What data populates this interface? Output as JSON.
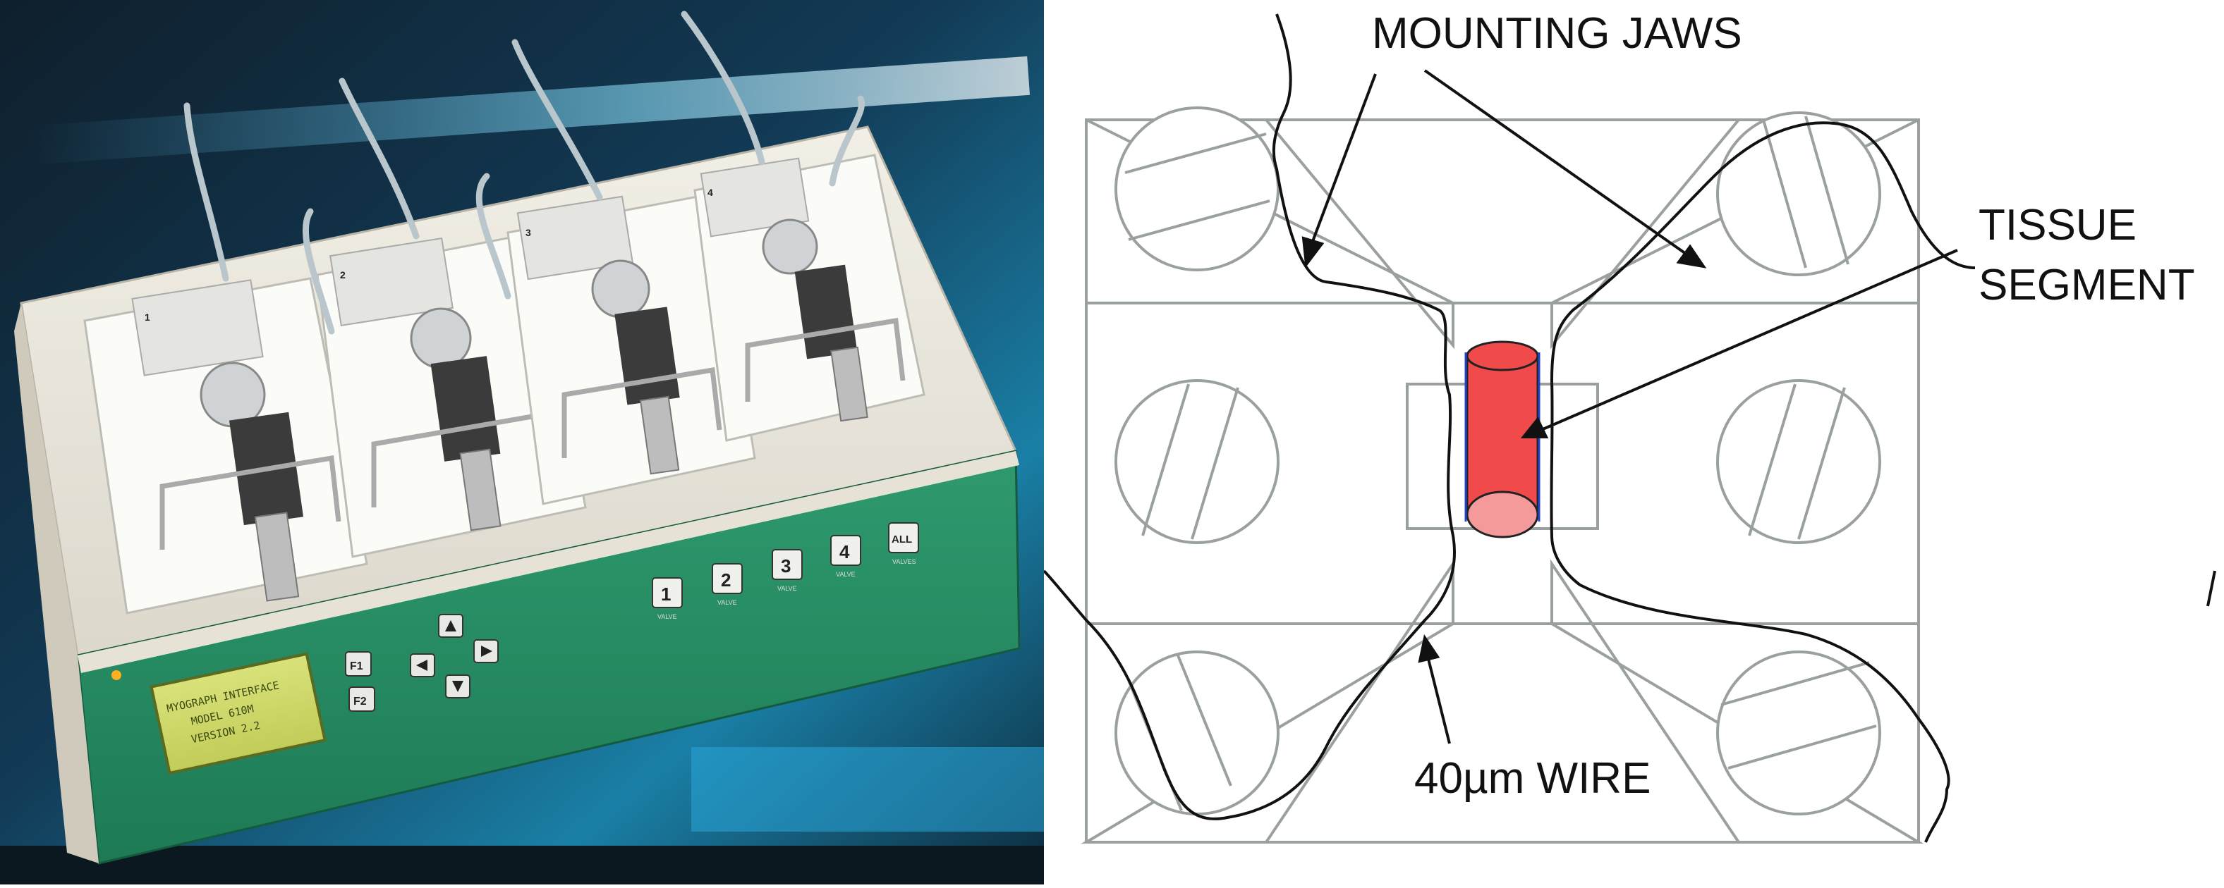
{
  "photo": {
    "lcd_lines": [
      "MYOGRAPH INTERFACE",
      "MODEL 610M",
      "VERSION 2.2"
    ],
    "function_keys": [
      "F1",
      "F2"
    ],
    "valve_keys": [
      "1",
      "2",
      "3",
      "4",
      "ALL"
    ],
    "valve_caption": "VALVE",
    "valve_caption_all": "VALVES",
    "chamber_numbers": [
      "1",
      "2",
      "3",
      "4"
    ]
  },
  "diagram": {
    "label_mounting_jaws": "MOUNTING JAWS",
    "label_tissue_line1": "TISSUE",
    "label_tissue_line2": "SEGMENT",
    "label_wire": "40µm WIRE",
    "colors": {
      "tissue": "#f04a4a",
      "tissue_end": "#f59a9a",
      "outline": "#9aa0a0",
      "leader": "#111111"
    }
  }
}
